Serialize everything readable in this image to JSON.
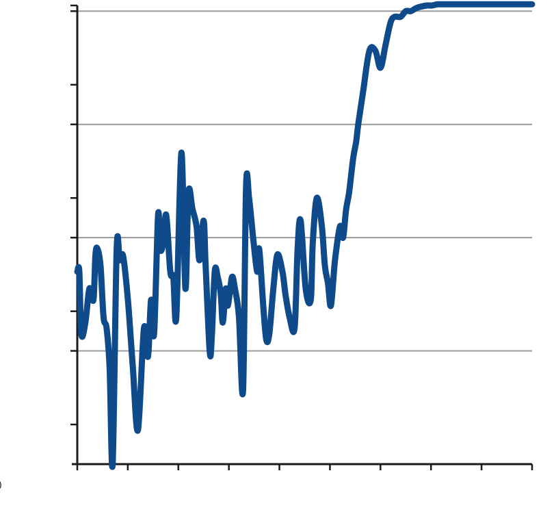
{
  "colors": {
    "line": "#0f4a8a",
    "grid": "#9a9a9a",
    "axis": "#1a1a1a"
  },
  "left_edge_mark": ")",
  "chart_data": {
    "type": "line",
    "title": "",
    "xlabel": "",
    "ylabel": "",
    "grid": true,
    "legend": "none",
    "xlim": [
      0,
      9
    ],
    "ylim": [
      0,
      8.1
    ],
    "x_major_ticks": [
      0,
      9
    ],
    "y_major_gridlines": [
      2,
      4,
      6,
      8
    ],
    "y_minor_ticks": [
      0.7,
      2.7,
      4.7,
      6.7
    ],
    "series": [
      {
        "x": [
          0.0,
          0.04,
          0.08,
          0.16,
          0.24,
          0.32,
          0.36,
          0.4,
          0.46,
          0.52,
          0.58,
          0.64,
          0.7,
          0.78,
          0.84,
          0.9,
          0.96,
          1.02,
          1.1,
          1.2,
          1.32,
          1.4,
          1.46,
          1.52,
          1.6,
          1.64,
          1.7,
          1.76,
          1.84,
          1.9,
          1.96,
          2.06,
          2.14,
          2.2,
          2.28,
          2.36,
          2.42,
          2.5,
          2.54,
          2.62,
          2.66,
          2.72,
          2.78,
          2.84,
          2.88,
          2.94,
          2.98,
          3.06,
          3.12,
          3.2,
          3.28,
          3.34,
          3.4,
          3.48,
          3.56,
          3.6,
          3.68,
          3.74,
          3.8,
          3.88,
          3.96,
          4.06,
          4.12,
          4.2,
          4.3,
          4.36,
          4.42,
          4.52,
          4.62,
          4.66,
          4.74,
          4.84,
          4.9,
          4.96,
          5.02,
          5.1,
          5.2,
          5.26,
          5.32,
          5.38,
          5.46,
          5.52,
          5.56,
          5.66,
          5.78,
          5.9,
          6.0,
          6.1,
          6.2,
          6.28,
          6.4,
          6.5,
          6.6,
          6.7,
          6.8,
          6.92,
          7.02,
          7.12,
          7.22,
          7.3,
          7.42,
          7.52,
          7.64,
          7.78,
          7.9,
          8.06,
          8.3,
          8.6,
          9.0
        ],
        "y": [
          3.4,
          3.4,
          2.3,
          2.5,
          3.1,
          2.9,
          3.7,
          3.8,
          3.5,
          2.6,
          2.4,
          1.7,
          0.0,
          3.8,
          3.6,
          3.7,
          3.3,
          2.7,
          1.7,
          0.6,
          2.4,
          1.9,
          2.9,
          2.3,
          4.4,
          3.8,
          3.9,
          4.4,
          3.4,
          3.3,
          2.6,
          5.5,
          3.1,
          4.8,
          4.5,
          4.2,
          3.6,
          4.3,
          3.5,
          2.0,
          2.2,
          3.4,
          3.3,
          3.0,
          2.5,
          3.1,
          2.8,
          3.3,
          3.1,
          2.6,
          1.3,
          4.9,
          4.7,
          4.0,
          3.4,
          3.8,
          2.8,
          2.2,
          2.3,
          3.1,
          3.7,
          3.4,
          3.0,
          2.6,
          2.4,
          3.8,
          4.3,
          3.1,
          2.9,
          3.9,
          4.7,
          4.2,
          3.5,
          3.2,
          2.8,
          3.6,
          4.2,
          4.0,
          4.5,
          4.8,
          5.4,
          5.7,
          6.0,
          6.6,
          7.3,
          7.3,
          7.0,
          7.4,
          7.8,
          7.9,
          7.9,
          8.0,
          8.0,
          8.05,
          8.08,
          8.1,
          8.1,
          8.12,
          8.12,
          8.12,
          8.12,
          8.12,
          8.12,
          8.12,
          8.12,
          8.12,
          8.12,
          8.12,
          8.12
        ]
      }
    ]
  }
}
